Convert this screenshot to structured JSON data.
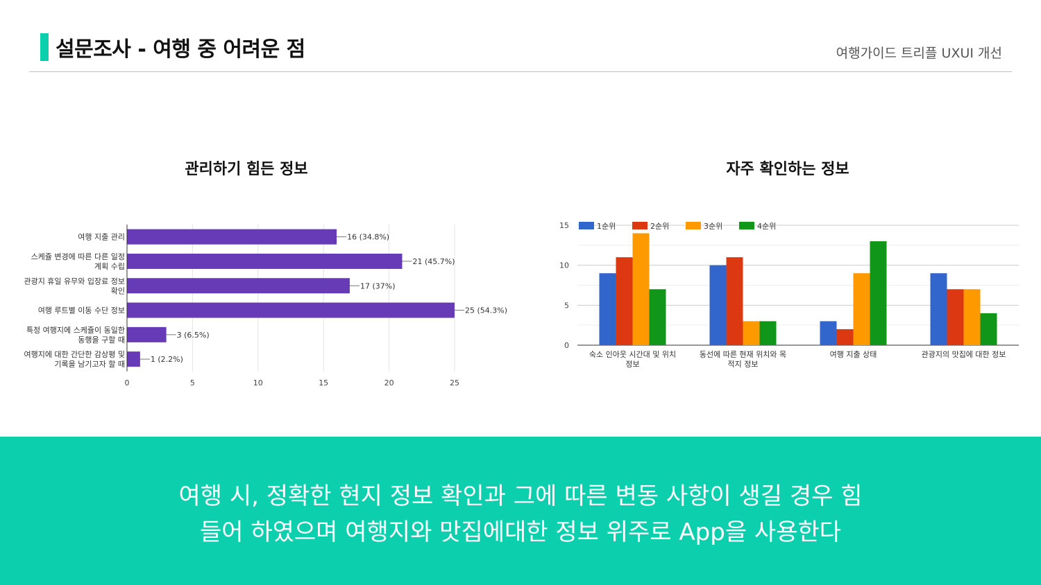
{
  "header": {
    "title": "설문조사 - 여행 중 어려운 점",
    "subtitle": "여행가이드 트리플 UXUI 개선"
  },
  "footer": {
    "line1": "여행 시, 정확한 현지 정보 확인과 그에 따른 변동 사항이 생길 경우 힘",
    "line2": "들어 하였으며 여행지와 맛집에대한 정보 위주로 App을 사용한다"
  },
  "colors": {
    "accent": "#0ccfae",
    "bar_purple": "#673ab7",
    "series": [
      "#3366cc",
      "#dc3912",
      "#ff9900",
      "#109618"
    ]
  },
  "chart_data": [
    {
      "type": "bar",
      "orientation": "horizontal",
      "title": "관리하기 힘든 정보",
      "categories": [
        [
          "여행 지출 관리"
        ],
        [
          "스케쥴 변경에 따른 다른 일정",
          "계획 수립"
        ],
        [
          "관광지 휴일 유무와 입장료 정보",
          "확인"
        ],
        [
          "여행 루트별 이동 수단 정보"
        ],
        [
          "특정 여행지에 스케쥴이 동일한",
          "동행을 구할 때"
        ],
        [
          "여행지에 대한 간단한 감상평 및",
          "기록을 남기고자 할 때"
        ]
      ],
      "values": [
        16,
        21,
        17,
        25,
        3,
        1
      ],
      "data_labels": [
        "16 (34.8%)",
        "21 (45.7%)",
        "17 (37%)",
        "25 (54.3%)",
        "3 (6.5%)",
        "1 (2.2%)"
      ],
      "xlim": [
        0,
        25
      ],
      "xticks": [
        0,
        5,
        10,
        15,
        20,
        25
      ],
      "grid": true
    },
    {
      "type": "bar",
      "title": "자주 확인하는 정보",
      "categories": [
        [
          "숙소 인아웃 시간대 및 위치",
          "정보"
        ],
        [
          "동선에 따른 현재 위치와 목",
          "적지 정보"
        ],
        [
          "여행 지출 상태"
        ],
        [
          "관광지의 맛집에 대한 정보"
        ]
      ],
      "series": [
        {
          "name": "1순위",
          "values": [
            9,
            10,
            3,
            9
          ]
        },
        {
          "name": "2순위",
          "values": [
            11,
            11,
            2,
            7
          ]
        },
        {
          "name": "3순위",
          "values": [
            14,
            3,
            9,
            7
          ]
        },
        {
          "name": "4순위",
          "values": [
            7,
            3,
            13,
            4
          ]
        }
      ],
      "ylim": [
        0,
        15
      ],
      "yticks": [
        0,
        5,
        10,
        15
      ],
      "legend": "top-left",
      "grid": true
    }
  ]
}
